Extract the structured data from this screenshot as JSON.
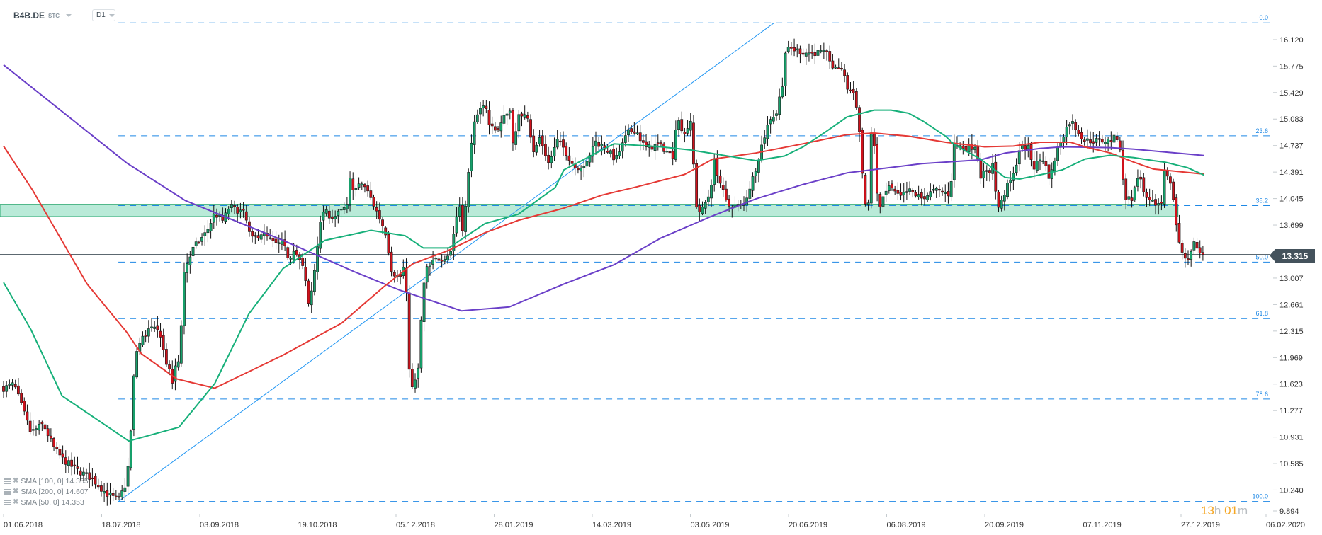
{
  "header": {
    "symbol": "B4B.DE",
    "instrument_type": "STC",
    "timeframe": "D1"
  },
  "legend": [
    {
      "label": "SMA [100,  0]",
      "value": "14.365",
      "color": "#e53935"
    },
    {
      "label": "SMA [200,  0]",
      "value": "14.607",
      "color": "#6a3fc8"
    },
    {
      "label": "SMA [50,  0]",
      "value": "14.353",
      "color": "#17b07a"
    }
  ],
  "current_price": "13.315",
  "countdown": {
    "hours": "13",
    "h": "h",
    "minutes": "01",
    "m": "m"
  },
  "colors": {
    "up": "#17a06b",
    "down": "#d0111b",
    "fib": "#1e88e5",
    "trendline": "#2196f3",
    "zone_fill": "#b9ead8",
    "zone_stroke": "#25a56c",
    "price_line": "#44525c"
  },
  "chart_data": {
    "type": "candlestick",
    "x_ticks": [
      "01.06.2018",
      "18.07.2018",
      "03.09.2018",
      "19.10.2018",
      "05.12.2018",
      "28.01.2019",
      "14.03.2019",
      "03.05.2019",
      "20.06.2019",
      "06.08.2019",
      "20.09.2019",
      "07.11.2019",
      "27.12.2019",
      "06.02.2020"
    ],
    "y_ticks": [
      "16.120",
      "15.775",
      "15.429",
      "15.083",
      "14.737",
      "14.391",
      "14.045",
      "13.699",
      "13.007",
      "12.661",
      "12.315",
      "11.969",
      "11.623",
      "11.277",
      "10.931",
      "10.585",
      "10.240",
      "9.894"
    ],
    "ylim": [
      9.894,
      16.637
    ],
    "last_price": 13.315,
    "close_path": [
      [
        "2018-06-01",
        11.57
      ],
      [
        "2018-06-06",
        11.62
      ],
      [
        "2018-06-14",
        10.99
      ],
      [
        "2018-06-20",
        11.1
      ],
      [
        "2018-06-25",
        10.8
      ],
      [
        "2018-06-29",
        10.65
      ],
      [
        "2018-07-06",
        10.5
      ],
      [
        "2018-07-13",
        10.4
      ],
      [
        "2018-07-20",
        10.2
      ],
      [
        "2018-07-26",
        10.1
      ],
      [
        "2018-07-30",
        10.35
      ],
      [
        "2018-08-01",
        11.0
      ],
      [
        "2018-08-03",
        12.0
      ],
      [
        "2018-08-06",
        12.2
      ],
      [
        "2018-08-10",
        12.35
      ],
      [
        "2018-08-15",
        12.3
      ],
      [
        "2018-08-17",
        12.0
      ],
      [
        "2018-08-21",
        11.63
      ],
      [
        "2018-08-23",
        11.95
      ],
      [
        "2018-08-24",
        11.9
      ],
      [
        "2018-08-27",
        13.3
      ],
      [
        "2018-08-28",
        13.2
      ],
      [
        "2018-08-31",
        13.4
      ],
      [
        "2018-09-06",
        13.6
      ],
      [
        "2018-09-10",
        13.85
      ],
      [
        "2018-09-14",
        13.75
      ],
      [
        "2018-09-17",
        13.95
      ],
      [
        "2018-09-24",
        13.85
      ],
      [
        "2018-09-27",
        13.5
      ],
      [
        "2018-10-02",
        13.6
      ],
      [
        "2018-10-08",
        13.45
      ],
      [
        "2018-10-12",
        13.45
      ],
      [
        "2018-10-15",
        13.25
      ],
      [
        "2018-10-17",
        13.4
      ],
      [
        "2018-10-22",
        13.1
      ],
      [
        "2018-10-24",
        12.65
      ],
      [
        "2018-10-26",
        12.9
      ],
      [
        "2018-10-29",
        13.6
      ],
      [
        "2018-10-31",
        13.88
      ],
      [
        "2018-11-05",
        13.8
      ],
      [
        "2018-11-12",
        13.95
      ],
      [
        "2018-11-13",
        14.3
      ],
      [
        "2018-11-15",
        14.15
      ],
      [
        "2018-11-19",
        14.25
      ],
      [
        "2018-11-22",
        14.1
      ],
      [
        "2018-11-27",
        13.8
      ],
      [
        "2018-11-30",
        13.6
      ],
      [
        "2018-12-03",
        13.1
      ],
      [
        "2018-12-07",
        13.0
      ],
      [
        "2018-12-10",
        13.2
      ],
      [
        "2018-12-12",
        11.9
      ],
      [
        "2018-12-14",
        11.55
      ],
      [
        "2018-12-17",
        11.75
      ],
      [
        "2018-12-18",
        12.2
      ],
      [
        "2018-12-21",
        13.1
      ],
      [
        "2018-12-27",
        13.25
      ],
      [
        "2019-01-02",
        13.3
      ],
      [
        "2019-01-04",
        13.35
      ],
      [
        "2019-01-08",
        13.9
      ],
      [
        "2019-01-09",
        13.95
      ],
      [
        "2019-01-11",
        13.6
      ],
      [
        "2019-01-14",
        14.4
      ],
      [
        "2019-01-16",
        14.95
      ],
      [
        "2019-01-18",
        15.05
      ],
      [
        "2019-01-23",
        15.35
      ],
      [
        "2019-01-25",
        15.0
      ],
      [
        "2019-01-30",
        14.95
      ],
      [
        "2019-02-04",
        15.25
      ],
      [
        "2019-02-06",
        14.7
      ],
      [
        "2019-02-08",
        15.1
      ],
      [
        "2019-02-12",
        15.2
      ],
      [
        "2019-02-15",
        14.63
      ],
      [
        "2019-02-18",
        14.85
      ],
      [
        "2019-02-22",
        14.5
      ],
      [
        "2019-02-26",
        14.8
      ],
      [
        "2019-03-01",
        14.7
      ],
      [
        "2019-03-06",
        14.45
      ],
      [
        "2019-03-12",
        14.5
      ],
      [
        "2019-03-15",
        14.8
      ],
      [
        "2019-03-21",
        14.7
      ],
      [
        "2019-03-26",
        14.55
      ],
      [
        "2019-04-01",
        14.9
      ],
      [
        "2019-04-05",
        14.95
      ],
      [
        "2019-04-10",
        14.7
      ],
      [
        "2019-04-17",
        14.75
      ],
      [
        "2019-04-24",
        14.6
      ],
      [
        "2019-04-26",
        15.1
      ],
      [
        "2019-04-30",
        14.9
      ],
      [
        "2019-05-03",
        15.05
      ],
      [
        "2019-05-06",
        13.95
      ],
      [
        "2019-05-08",
        13.85
      ],
      [
        "2019-05-13",
        14.15
      ],
      [
        "2019-05-14",
        14.6
      ],
      [
        "2019-05-17",
        14.3
      ],
      [
        "2019-05-21",
        13.95
      ],
      [
        "2019-05-27",
        13.95
      ],
      [
        "2019-05-29",
        13.95
      ],
      [
        "2019-06-03",
        14.35
      ],
      [
        "2019-06-07",
        14.75
      ],
      [
        "2019-06-11",
        15.1
      ],
      [
        "2019-06-14",
        15.15
      ],
      [
        "2019-06-17",
        15.55
      ],
      [
        "2019-06-18",
        15.95
      ],
      [
        "2019-06-21",
        16.0
      ],
      [
        "2019-06-28",
        15.95
      ],
      [
        "2019-07-05",
        15.95
      ],
      [
        "2019-07-09",
        15.92
      ],
      [
        "2019-07-12",
        15.7
      ],
      [
        "2019-07-15",
        15.8
      ],
      [
        "2019-07-18",
        15.5
      ],
      [
        "2019-07-22",
        15.4
      ],
      [
        "2019-07-24",
        14.9
      ],
      [
        "2019-07-25",
        14.6
      ],
      [
        "2019-07-26",
        13.99
      ],
      [
        "2019-07-29",
        13.93
      ],
      [
        "2019-07-30",
        15.57
      ],
      [
        "2019-07-31",
        14.7
      ],
      [
        "2019-08-02",
        13.88
      ],
      [
        "2019-08-05",
        14.1
      ],
      [
        "2019-08-07",
        14.2
      ],
      [
        "2019-08-12",
        14.05
      ],
      [
        "2019-08-16",
        14.15
      ],
      [
        "2019-08-22",
        14.05
      ],
      [
        "2019-08-28",
        14.15
      ],
      [
        "2019-09-04",
        14.1
      ],
      [
        "2019-09-05",
        14.43
      ],
      [
        "2019-09-06",
        14.75
      ],
      [
        "2019-09-12",
        14.7
      ],
      [
        "2019-09-16",
        14.75
      ],
      [
        "2019-09-18",
        14.35
      ],
      [
        "2019-09-23",
        14.4
      ],
      [
        "2019-09-24",
        14.56
      ],
      [
        "2019-09-25",
        14.17
      ],
      [
        "2019-09-27",
        13.9
      ],
      [
        "2019-09-30",
        14.15
      ],
      [
        "2019-10-04",
        14.35
      ],
      [
        "2019-10-07",
        14.7
      ],
      [
        "2019-10-11",
        14.72
      ],
      [
        "2019-10-14",
        14.45
      ],
      [
        "2019-10-18",
        14.6
      ],
      [
        "2019-10-22",
        14.3
      ],
      [
        "2019-10-25",
        14.64
      ],
      [
        "2019-10-28",
        14.86
      ],
      [
        "2019-11-01",
        15.07
      ],
      [
        "2019-11-04",
        14.95
      ],
      [
        "2019-11-08",
        14.8
      ],
      [
        "2019-11-15",
        14.8
      ],
      [
        "2019-11-20",
        14.8
      ],
      [
        "2019-11-25",
        14.85
      ],
      [
        "2019-11-26",
        14.69
      ],
      [
        "2019-11-27",
        14.4
      ],
      [
        "2019-11-28",
        14.08
      ],
      [
        "2019-12-02",
        14.02
      ],
      [
        "2019-12-04",
        14.28
      ],
      [
        "2019-12-06",
        14.3
      ],
      [
        "2019-12-09",
        14.02
      ],
      [
        "2019-12-13",
        13.98
      ],
      [
        "2019-12-17",
        13.98
      ],
      [
        "2019-12-18",
        14.35
      ],
      [
        "2019-12-19",
        14.5
      ],
      [
        "2019-12-20",
        14.38
      ],
      [
        "2019-12-23",
        14.07
      ],
      [
        "2019-12-24",
        13.8
      ],
      [
        "2019-12-27",
        13.33
      ],
      [
        "2019-12-30",
        13.25
      ],
      [
        "2019-12-31",
        13.3
      ],
      [
        "2020-01-02",
        13.5
      ],
      [
        "2020-01-03",
        13.4
      ],
      [
        "2020-01-06",
        13.34
      ],
      [
        "2020-01-07",
        13.315
      ]
    ],
    "sma": [
      {
        "name": "SMA [200,  0]",
        "color": "#6a3fc8",
        "points": [
          [
            "2018-06-01",
            15.79
          ],
          [
            "2018-07-30",
            14.51
          ],
          [
            "2018-08-27",
            14.02
          ],
          [
            "2018-10-12",
            13.5
          ],
          [
            "2018-11-15",
            13.09
          ],
          [
            "2018-12-07",
            12.85
          ],
          [
            "2019-01-10",
            12.58
          ],
          [
            "2019-02-04",
            12.63
          ],
          [
            "2019-03-01",
            12.93
          ],
          [
            "2019-03-25",
            13.18
          ],
          [
            "2019-04-18",
            13.53
          ],
          [
            "2019-05-13",
            13.81
          ],
          [
            "2019-06-04",
            14.04
          ],
          [
            "2019-06-27",
            14.23
          ],
          [
            "2019-07-18",
            14.38
          ],
          [
            "2019-08-05",
            14.44
          ],
          [
            "2019-08-22",
            14.5
          ],
          [
            "2019-09-18",
            14.55
          ],
          [
            "2019-09-30",
            14.64
          ],
          [
            "2019-10-17",
            14.7
          ],
          [
            "2019-10-28",
            14.72
          ],
          [
            "2019-11-21",
            14.71
          ],
          [
            "2019-12-03",
            14.69
          ],
          [
            "2020-01-07",
            14.607
          ]
        ]
      },
      {
        "name": "SMA [100,  0]",
        "color": "#e53935",
        "points": [
          [
            "2018-06-01",
            14.73
          ],
          [
            "2018-06-15",
            14.15
          ],
          [
            "2018-07-11",
            12.93
          ],
          [
            "2018-07-30",
            12.3
          ],
          [
            "2018-08-06",
            12.02
          ],
          [
            "2018-08-23",
            11.69
          ],
          [
            "2018-09-10",
            11.57
          ],
          [
            "2018-10-12",
            12.0
          ],
          [
            "2018-11-09",
            12.42
          ],
          [
            "2018-11-29",
            12.89
          ],
          [
            "2018-12-14",
            13.19
          ],
          [
            "2019-01-03",
            13.37
          ],
          [
            "2019-01-23",
            13.6
          ],
          [
            "2019-02-08",
            13.76
          ],
          [
            "2019-03-01",
            13.92
          ],
          [
            "2019-03-19",
            14.09
          ],
          [
            "2019-04-06",
            14.2
          ],
          [
            "2019-04-30",
            14.36
          ],
          [
            "2019-05-14",
            14.56
          ],
          [
            "2019-06-04",
            14.64
          ],
          [
            "2019-06-27",
            14.76
          ],
          [
            "2019-07-18",
            14.88
          ],
          [
            "2019-07-31",
            14.9
          ],
          [
            "2019-08-16",
            14.86
          ],
          [
            "2019-09-02",
            14.78
          ],
          [
            "2019-09-20",
            14.72
          ],
          [
            "2019-10-04",
            14.73
          ],
          [
            "2019-10-17",
            14.78
          ],
          [
            "2019-11-01",
            14.78
          ],
          [
            "2019-11-08",
            14.72
          ],
          [
            "2019-11-21",
            14.64
          ],
          [
            "2019-12-03",
            14.52
          ],
          [
            "2019-12-13",
            14.43
          ],
          [
            "2020-01-07",
            14.365
          ]
        ]
      },
      {
        "name": "SMA [50,  0]",
        "color": "#17b07a",
        "points": [
          [
            "2018-06-01",
            12.95
          ],
          [
            "2018-06-14",
            12.34
          ],
          [
            "2018-06-29",
            11.47
          ],
          [
            "2018-07-31",
            10.88
          ],
          [
            "2018-08-24",
            11.06
          ],
          [
            "2018-09-10",
            11.63
          ],
          [
            "2018-09-26",
            12.54
          ],
          [
            "2018-10-12",
            13.13
          ],
          [
            "2018-11-01",
            13.5
          ],
          [
            "2018-11-23",
            13.63
          ],
          [
            "2018-12-10",
            13.56
          ],
          [
            "2018-12-20",
            13.4
          ],
          [
            "2019-01-03",
            13.4
          ],
          [
            "2019-01-23",
            13.72
          ],
          [
            "2019-02-08",
            13.84
          ],
          [
            "2019-02-25",
            14.19
          ],
          [
            "2019-03-01",
            14.42
          ],
          [
            "2019-03-25",
            14.76
          ],
          [
            "2019-04-18",
            14.72
          ],
          [
            "2019-05-03",
            14.68
          ],
          [
            "2019-05-17",
            14.62
          ],
          [
            "2019-06-04",
            14.54
          ],
          [
            "2019-06-18",
            14.6
          ],
          [
            "2019-06-27",
            14.72
          ],
          [
            "2019-07-08",
            14.92
          ],
          [
            "2019-07-18",
            15.11
          ],
          [
            "2019-07-31",
            15.2
          ],
          [
            "2019-08-08",
            15.2
          ],
          [
            "2019-08-16",
            15.16
          ],
          [
            "2019-08-23",
            15.05
          ],
          [
            "2019-09-02",
            14.86
          ],
          [
            "2019-09-06",
            14.75
          ],
          [
            "2019-09-18",
            14.56
          ],
          [
            "2019-09-30",
            14.32
          ],
          [
            "2019-10-07",
            14.3
          ],
          [
            "2019-10-18",
            14.36
          ],
          [
            "2019-10-28",
            14.42
          ],
          [
            "2019-11-08",
            14.56
          ],
          [
            "2019-11-21",
            14.61
          ],
          [
            "2019-12-03",
            14.58
          ],
          [
            "2019-12-13",
            14.54
          ],
          [
            "2019-12-19",
            14.52
          ],
          [
            "2019-12-30",
            14.45
          ],
          [
            "2020-01-07",
            14.353
          ]
        ]
      }
    ],
    "fibonacci": {
      "start_date": "2018-07-26",
      "levels": [
        {
          "label": "0.0",
          "price": 16.34
        },
        {
          "label": "23.6",
          "price": 14.865
        },
        {
          "label": "38.2",
          "price": 13.953
        },
        {
          "label": "50.0",
          "price": 13.215
        },
        {
          "label": "61.8",
          "price": 12.478
        },
        {
          "label": "78.6",
          "price": 11.428
        },
        {
          "label": "100.0",
          "price": 10.09
        }
      ]
    },
    "trendline": {
      "from": [
        "2018-07-26",
        10.09
      ],
      "to": [
        "2019-06-13",
        16.34
      ]
    },
    "support_zone": {
      "low": 13.81,
      "high": 13.97,
      "end_date": "2019-12-24"
    }
  }
}
